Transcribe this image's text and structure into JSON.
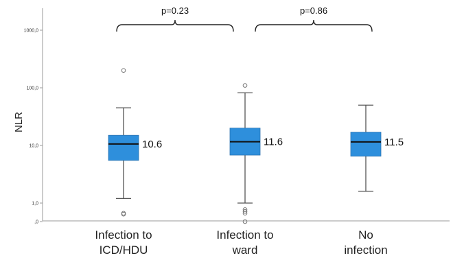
{
  "chart_data": {
    "type": "boxplot",
    "ylabel": "NLR",
    "yscale": "log",
    "yticks": [
      {
        "value": 0,
        "label": ",0"
      },
      {
        "value": 1,
        "label": "1,0"
      },
      {
        "value": 10,
        "label": "10,0"
      },
      {
        "value": 100,
        "label": "100,0"
      },
      {
        "value": 1000,
        "label": "1000,0"
      }
    ],
    "categories": [
      {
        "lines": [
          "Infection to",
          "ICD/HDU"
        ]
      },
      {
        "lines": [
          "Infection to",
          "ward"
        ]
      },
      {
        "lines": [
          "No",
          "infection"
        ]
      }
    ],
    "boxes": [
      {
        "whisker_low": 1.2,
        "q1": 5.5,
        "median": 10.6,
        "q3": 15,
        "whisker_high": 45,
        "median_label": "10.6",
        "outliers": [
          200,
          0.45,
          0.4
        ]
      },
      {
        "whisker_low": 1.0,
        "q1": 6.8,
        "median": 11.6,
        "q3": 20,
        "whisker_high": 82,
        "median_label": "11.6",
        "outliers": [
          110,
          0.65,
          0.55,
          0.45,
          0
        ]
      },
      {
        "whisker_low": 1.6,
        "q1": 6.5,
        "median": 11.5,
        "q3": 17,
        "whisker_high": 50,
        "median_label": "11.5",
        "outliers": []
      }
    ],
    "comparisons": [
      {
        "from": 0,
        "to": 1,
        "label": "p=0.23"
      },
      {
        "from": 1,
        "to": 2,
        "label": "p=0.86"
      }
    ],
    "colors": {
      "box": "#2e8fdc",
      "box_edge": "#2a72b0",
      "median": "#111111",
      "whisker": "#555555"
    }
  }
}
